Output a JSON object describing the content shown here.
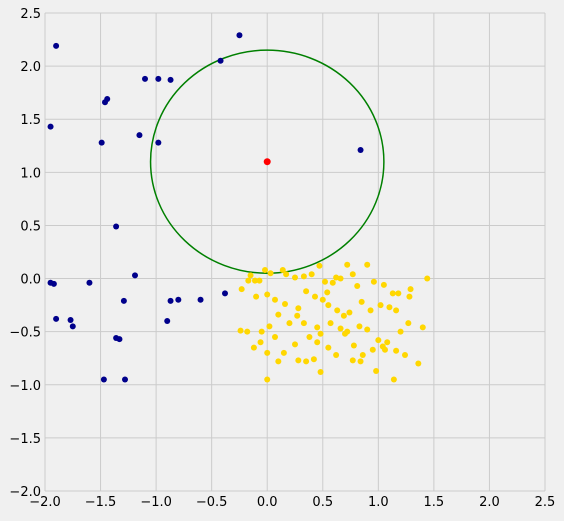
{
  "chart_data": {
    "type": "scatter",
    "title": "",
    "xlabel": "",
    "ylabel": "",
    "xlim": [
      -2.0,
      2.5
    ],
    "ylim": [
      -2.0,
      2.5
    ],
    "xticks": [
      "−2.0",
      "−1.5",
      "−1.0",
      "−0.5",
      "0.0",
      "0.5",
      "1.0",
      "1.5",
      "2.0",
      "2.5"
    ],
    "yticks": [
      "−2.0",
      "−1.5",
      "−1.0",
      "−0.5",
      "0.0",
      "0.5",
      "1.0",
      "1.5",
      "2.0",
      "2.5"
    ],
    "xtick_values": [
      -2.0,
      -1.5,
      -1.0,
      -0.5,
      0.0,
      0.5,
      1.0,
      1.5,
      2.0,
      2.5
    ],
    "ytick_values": [
      -2.0,
      -1.5,
      -1.0,
      -0.5,
      0.0,
      0.5,
      1.0,
      1.5,
      2.0,
      2.5
    ],
    "grid": true,
    "background": "#f0f0f0",
    "series": [
      {
        "color": "#00008b",
        "points": [
          [
            -1.9,
            2.19
          ],
          [
            -0.25,
            2.29
          ],
          [
            -0.42,
            2.05
          ],
          [
            -1.1,
            1.88
          ],
          [
            -0.98,
            1.88
          ],
          [
            -0.87,
            1.87
          ],
          [
            -1.44,
            1.69
          ],
          [
            -1.46,
            1.66
          ],
          [
            -1.95,
            1.43
          ],
          [
            -1.15,
            1.35
          ],
          [
            -1.49,
            1.28
          ],
          [
            -0.98,
            1.28
          ],
          [
            0.84,
            1.21
          ],
          [
            -1.36,
            0.49
          ],
          [
            -1.19,
            0.03
          ],
          [
            -1.95,
            -0.04
          ],
          [
            -1.92,
            -0.05
          ],
          [
            -1.6,
            -0.04
          ],
          [
            -0.38,
            -0.14
          ],
          [
            -0.6,
            -0.2
          ],
          [
            -0.8,
            -0.2
          ],
          [
            -0.87,
            -0.21
          ],
          [
            -1.29,
            -0.21
          ],
          [
            -1.9,
            -0.38
          ],
          [
            -1.77,
            -0.39
          ],
          [
            -1.75,
            -0.45
          ],
          [
            -0.9,
            -0.4
          ],
          [
            -1.36,
            -0.56
          ],
          [
            -1.33,
            -0.57
          ],
          [
            -1.47,
            -0.95
          ],
          [
            -1.28,
            -0.95
          ]
        ]
      },
      {
        "color": "#ffd700",
        "points": [
          [
            -0.17,
            -0.02
          ],
          [
            -0.15,
            0.03
          ],
          [
            -0.11,
            -0.02
          ],
          [
            -0.07,
            -0.02
          ],
          [
            -0.02,
            0.08
          ],
          [
            0.03,
            0.05
          ],
          [
            0.14,
            0.08
          ],
          [
            0.17,
            0.04
          ],
          [
            0.25,
            0.01
          ],
          [
            0.33,
            0.02
          ],
          [
            0.4,
            0.04
          ],
          [
            0.47,
            0.12
          ],
          [
            0.52,
            -0.03
          ],
          [
            0.59,
            -0.04
          ],
          [
            0.62,
            0.01
          ],
          [
            0.66,
            0.0
          ],
          [
            0.72,
            0.13
          ],
          [
            0.77,
            0.04
          ],
          [
            0.81,
            -0.07
          ],
          [
            0.9,
            0.13
          ],
          [
            0.96,
            -0.03
          ],
          [
            1.05,
            -0.06
          ],
          [
            1.13,
            -0.14
          ],
          [
            1.18,
            -0.14
          ],
          [
            1.29,
            -0.1
          ],
          [
            1.44,
            0.0
          ],
          [
            -0.23,
            -0.1
          ],
          [
            -0.1,
            -0.17
          ],
          [
            0.0,
            -0.15
          ],
          [
            0.07,
            -0.2
          ],
          [
            0.16,
            -0.24
          ],
          [
            0.28,
            -0.28
          ],
          [
            0.35,
            -0.12
          ],
          [
            0.43,
            -0.17
          ],
          [
            0.5,
            -0.2
          ],
          [
            0.55,
            -0.25
          ],
          [
            0.63,
            -0.3
          ],
          [
            0.69,
            -0.35
          ],
          [
            0.74,
            -0.32
          ],
          [
            0.85,
            -0.22
          ],
          [
            0.93,
            -0.3
          ],
          [
            1.02,
            -0.25
          ],
          [
            1.1,
            -0.27
          ],
          [
            1.16,
            -0.3
          ],
          [
            1.28,
            -0.17
          ],
          [
            -0.24,
            -0.49
          ],
          [
            -0.18,
            -0.5
          ],
          [
            -0.05,
            -0.5
          ],
          [
            0.02,
            -0.45
          ],
          [
            0.1,
            -0.34
          ],
          [
            0.2,
            -0.42
          ],
          [
            0.27,
            -0.35
          ],
          [
            0.33,
            -0.42
          ],
          [
            0.45,
            -0.46
          ],
          [
            0.48,
            -0.52
          ],
          [
            0.57,
            -0.42
          ],
          [
            0.66,
            -0.47
          ],
          [
            0.72,
            -0.5
          ],
          [
            0.83,
            -0.45
          ],
          [
            0.9,
            -0.48
          ],
          [
            1.0,
            -0.58
          ],
          [
            1.08,
            -0.6
          ],
          [
            1.2,
            -0.5
          ],
          [
            1.27,
            -0.42
          ],
          [
            1.4,
            -0.46
          ],
          [
            -0.12,
            -0.65
          ],
          [
            -0.06,
            -0.6
          ],
          [
            0.0,
            -0.7
          ],
          [
            0.07,
            -0.55
          ],
          [
            0.15,
            -0.7
          ],
          [
            0.25,
            -0.62
          ],
          [
            0.38,
            -0.55
          ],
          [
            0.45,
            -0.6
          ],
          [
            0.55,
            -0.65
          ],
          [
            0.62,
            -0.72
          ],
          [
            0.78,
            -0.63
          ],
          [
            0.86,
            -0.72
          ],
          [
            0.95,
            -0.67
          ],
          [
            1.06,
            -0.67
          ],
          [
            1.16,
            -0.68
          ],
          [
            1.24,
            -0.72
          ],
          [
            0.1,
            -0.78
          ],
          [
            0.35,
            -0.78
          ],
          [
            0.42,
            -0.76
          ],
          [
            0.48,
            -0.88
          ],
          [
            0.77,
            -0.77
          ],
          [
            0.84,
            -0.78
          ],
          [
            0.98,
            -0.87
          ],
          [
            1.14,
            -0.95
          ],
          [
            1.36,
            -0.8
          ],
          [
            0.0,
            -0.95
          ],
          [
            0.7,
            -0.52
          ],
          [
            0.28,
            -0.77
          ],
          [
            1.04,
            -0.64
          ],
          [
            0.54,
            -0.13
          ]
        ]
      },
      {
        "color": "#ff0000",
        "points": [
          [
            0.0,
            1.1
          ]
        ]
      }
    ],
    "circle": {
      "cx": 0.0,
      "cy": 1.1,
      "rx": 1.05,
      "ry": 1.05,
      "color": "#008000"
    },
    "grid_color": "#cbcbcb"
  }
}
